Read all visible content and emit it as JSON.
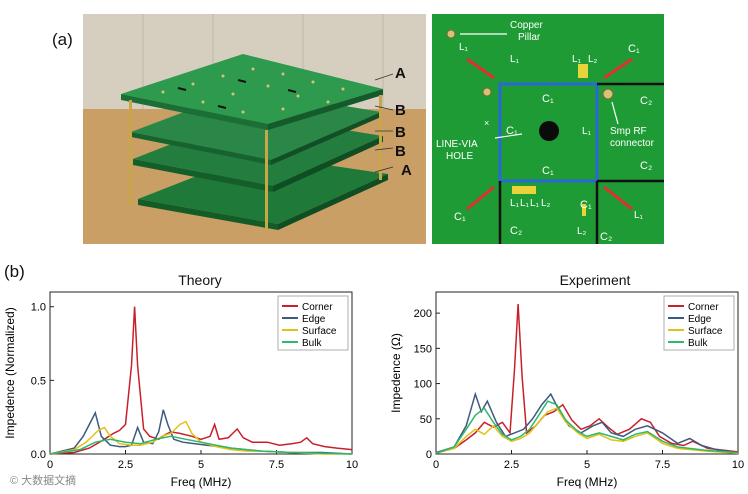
{
  "panel_a_label": "(a)",
  "panel_b_label": "(b)",
  "photo": {
    "layer_labels": [
      "A",
      "B",
      "B",
      "B",
      "A"
    ]
  },
  "pcb": {
    "labels": {
      "copper_pillar": [
        "Copper",
        "Pillar"
      ],
      "line_via_hole": [
        "LINE-VIA",
        "HOLE"
      ],
      "smp_rf_connector": [
        "Smp RF",
        "connector"
      ],
      "L1": "L₁",
      "L2": "L₂",
      "C1": "C₁",
      "C2": "C₂"
    }
  },
  "chart_data": [
    {
      "type": "line",
      "title": "Theory",
      "xlabel": "Freq (MHz)",
      "ylabel": "Impedence (Normalized)",
      "xlim": [
        0,
        10
      ],
      "ylim": [
        0,
        1.1
      ],
      "xticks": [
        "0",
        "2.5",
        "5",
        "7.5",
        "10"
      ],
      "yticks": [
        "0.0",
        "0.5",
        "1.0"
      ],
      "legend_position": "top-right",
      "series": [
        {
          "name": "Corner",
          "color": "#c8202a",
          "x": [
            0,
            0.8,
            1.3,
            1.8,
            2.1,
            2.3,
            2.5,
            2.7,
            2.8,
            2.9,
            3.1,
            3.3,
            3.6,
            3.8,
            4.0,
            4.3,
            4.7,
            5.0,
            5.3,
            5.45,
            5.6,
            5.9,
            6.2,
            6.4,
            6.7,
            7.2,
            7.6,
            8.0,
            8.3,
            8.5,
            8.7,
            9.1,
            9.5,
            10
          ],
          "y": [
            0,
            0.01,
            0.04,
            0.1,
            0.14,
            0.16,
            0.2,
            0.6,
            1.0,
            0.6,
            0.17,
            0.12,
            0.1,
            0.13,
            0.15,
            0.14,
            0.12,
            0.1,
            0.12,
            0.2,
            0.1,
            0.11,
            0.17,
            0.11,
            0.08,
            0.08,
            0.06,
            0.07,
            0.08,
            0.11,
            0.07,
            0.05,
            0.04,
            0.03
          ]
        },
        {
          "name": "Edge",
          "color": "#3d5a80",
          "x": [
            0,
            0.8,
            1.1,
            1.3,
            1.5,
            1.7,
            2.0,
            2.3,
            2.5,
            2.7,
            2.9,
            3.1,
            3.4,
            3.6,
            3.75,
            3.9,
            4.1,
            4.4,
            4.8,
            5.2,
            5.6,
            6.0,
            6.5,
            7.0,
            8.0,
            9.0,
            10
          ],
          "y": [
            0,
            0.04,
            0.12,
            0.2,
            0.28,
            0.12,
            0.06,
            0.05,
            0.05,
            0.06,
            0.18,
            0.08,
            0.07,
            0.15,
            0.3,
            0.2,
            0.1,
            0.08,
            0.07,
            0.06,
            0.05,
            0.04,
            0.03,
            0.02,
            0.01,
            0.01,
            0.0
          ]
        },
        {
          "name": "Surface",
          "color": "#e0c21a",
          "x": [
            0,
            0.8,
            1.2,
            1.6,
            1.8,
            2.0,
            2.3,
            2.7,
            3.0,
            3.4,
            3.7,
            4.0,
            4.3,
            4.5,
            4.7,
            5.0,
            5.5,
            6.0,
            6.5,
            7.0,
            8.0,
            9.0,
            10
          ],
          "y": [
            0,
            0.03,
            0.08,
            0.16,
            0.18,
            0.12,
            0.07,
            0.06,
            0.06,
            0.08,
            0.12,
            0.14,
            0.2,
            0.22,
            0.14,
            0.08,
            0.05,
            0.03,
            0.02,
            0.02,
            0.01,
            0.0,
            0.0
          ]
        },
        {
          "name": "Bulk",
          "color": "#2fb86a",
          "x": [
            0,
            1.0,
            1.5,
            2.0,
            2.5,
            3.0,
            3.5,
            4.0,
            4.5,
            5.0,
            5.5,
            6.0,
            7.0,
            8.0,
            10
          ],
          "y": [
            0,
            0.03,
            0.08,
            0.1,
            0.08,
            0.07,
            0.1,
            0.12,
            0.1,
            0.08,
            0.06,
            0.04,
            0.02,
            0.01,
            0.0
          ]
        }
      ]
    },
    {
      "type": "line",
      "title": "Experiment",
      "xlabel": "Freq (MHz)",
      "ylabel": "Impedence (Ω)",
      "xlim": [
        0,
        10
      ],
      "ylim": [
        0,
        230
      ],
      "xticks": [
        "0",
        "2.5",
        "5",
        "7.5",
        "10"
      ],
      "yticks": [
        "0",
        "50",
        "100",
        "150",
        "200"
      ],
      "legend_position": "top-right",
      "series": [
        {
          "name": "Corner",
          "color": "#c8202a",
          "x": [
            0,
            0.6,
            1.0,
            1.3,
            1.6,
            1.9,
            2.2,
            2.45,
            2.6,
            2.72,
            2.85,
            3.0,
            3.3,
            3.6,
            3.9,
            4.2,
            4.5,
            4.8,
            5.1,
            5.4,
            5.7,
            6.0,
            6.4,
            6.8,
            7.1,
            7.4,
            7.8,
            8.2,
            8.5,
            9.0,
            10
          ],
          "y": [
            2,
            8,
            20,
            30,
            45,
            38,
            45,
            30,
            120,
            213,
            110,
            30,
            40,
            55,
            60,
            70,
            48,
            35,
            40,
            50,
            38,
            28,
            35,
            50,
            45,
            25,
            15,
            12,
            18,
            8,
            3
          ]
        },
        {
          "name": "Edge",
          "color": "#3d5a80",
          "x": [
            0,
            0.6,
            1.0,
            1.3,
            1.5,
            1.7,
            2.0,
            2.3,
            2.6,
            2.9,
            3.2,
            3.5,
            3.8,
            4.1,
            4.4,
            4.8,
            5.2,
            5.5,
            5.8,
            6.2,
            6.6,
            7.0,
            7.5,
            8.0,
            8.4,
            8.8,
            9.3,
            10
          ],
          "y": [
            2,
            10,
            40,
            85,
            60,
            75,
            45,
            25,
            30,
            35,
            50,
            70,
            85,
            60,
            40,
            30,
            40,
            45,
            30,
            25,
            35,
            40,
            30,
            15,
            22,
            12,
            6,
            2
          ]
        },
        {
          "name": "Surface",
          "color": "#e0c21a",
          "x": [
            0,
            0.6,
            1.0,
            1.3,
            1.6,
            1.9,
            2.2,
            2.5,
            2.8,
            3.1,
            3.4,
            3.7,
            4.0,
            4.3,
            4.7,
            5.0,
            5.4,
            5.8,
            6.2,
            6.6,
            7.0,
            7.5,
            8.0,
            9.0,
            10
          ],
          "y": [
            1,
            8,
            25,
            35,
            28,
            40,
            25,
            18,
            22,
            30,
            45,
            60,
            65,
            45,
            30,
            22,
            28,
            20,
            18,
            25,
            30,
            15,
            8,
            4,
            1
          ]
        },
        {
          "name": "Bulk",
          "color": "#2fb86a",
          "x": [
            0,
            0.6,
            1.0,
            1.3,
            1.6,
            1.9,
            2.2,
            2.5,
            2.8,
            3.1,
            3.4,
            3.7,
            4.0,
            4.3,
            4.7,
            5.0,
            5.4,
            5.8,
            6.2,
            6.6,
            7.0,
            7.5,
            8.0,
            9.0,
            10
          ],
          "y": [
            1,
            10,
            35,
            55,
            65,
            45,
            28,
            20,
            25,
            35,
            55,
            75,
            70,
            48,
            32,
            25,
            30,
            25,
            20,
            28,
            32,
            18,
            10,
            5,
            2
          ]
        }
      ]
    }
  ],
  "watermark": "© 大数据文摘"
}
